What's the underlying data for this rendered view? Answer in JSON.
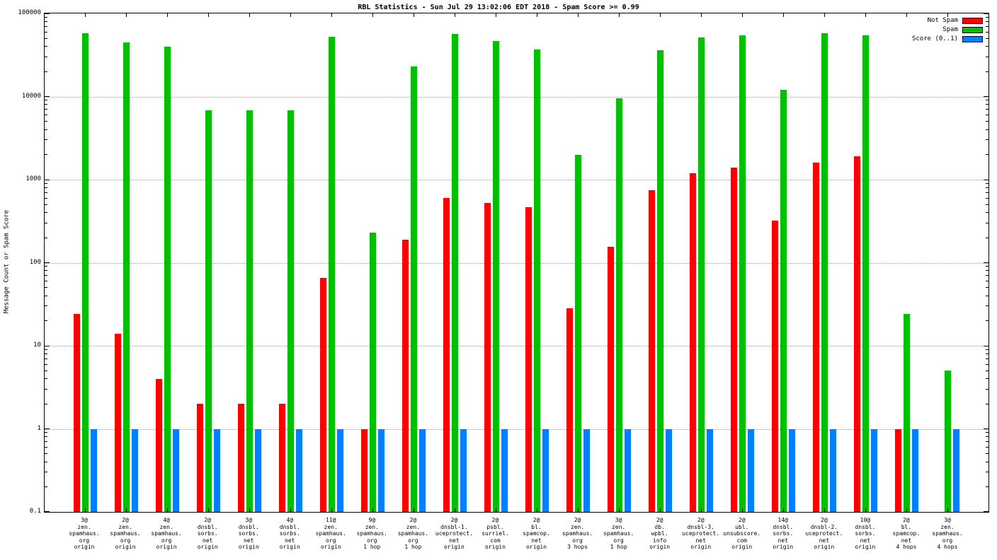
{
  "chart_data": {
    "type": "bar",
    "title": "RBL Statistics - Sun Jul 29 13:02:06 EDT 2018 - Spam Score >= 0.99",
    "ylabel": "Message Count or Spam Score",
    "xlabel": "",
    "scale": "log",
    "ylim": [
      0.1,
      100000
    ],
    "yticks": [
      "100000",
      "10000",
      "1000",
      "100",
      "10",
      "1",
      "0.1"
    ],
    "grid": true,
    "legend_position": "top-right",
    "categories": [
      [
        "3@",
        "zen.",
        "spamhaus.",
        "org",
        "origin"
      ],
      [
        "2@",
        "zen.",
        "spamhaus.",
        "org",
        "origin"
      ],
      [
        "4@",
        "zen.",
        "spamhaus.",
        "org",
        "origin"
      ],
      [
        "2@",
        "dnsbl.",
        "sorbs.",
        "net",
        "origin"
      ],
      [
        "3@",
        "dnsbl.",
        "sorbs.",
        "net",
        "origin"
      ],
      [
        "4@",
        "dnsbl.",
        "sorbs.",
        "net",
        "origin"
      ],
      [
        "11@",
        "zen.",
        "spamhaus.",
        "org",
        "origin"
      ],
      [
        "9@",
        "zen.",
        "spamhaus.",
        "org",
        "1 hop"
      ],
      [
        "2@",
        "zen.",
        "spamhaus.",
        "org",
        "1 hop"
      ],
      [
        "2@",
        "dnsbl-1.",
        "uceprotect.",
        "net",
        "origin"
      ],
      [
        "2@",
        "psbl.",
        "surriel.",
        "com",
        "origin"
      ],
      [
        "2@",
        "bl.",
        "spamcop.",
        "net",
        "origin"
      ],
      [
        "2@",
        "zen.",
        "spamhaus.",
        "org",
        "3 hops"
      ],
      [
        "3@",
        "zen.",
        "spamhaus.",
        "org",
        "1 hop"
      ],
      [
        "2@",
        "db.",
        "wpbl.",
        "info",
        "origin"
      ],
      [
        "2@",
        "dnsbl-3.",
        "uceprotect.",
        "net",
        "origin"
      ],
      [
        "2@",
        "ubl.",
        "unsubscore.",
        "com",
        "origin"
      ],
      [
        "14@",
        "dnsbl.",
        "sorbs.",
        "net",
        "origin"
      ],
      [
        "2@",
        "dnsbl-2.",
        "uceprotect.",
        "net",
        "origin"
      ],
      [
        "10@",
        "dnsbl.",
        "sorbs.",
        "net",
        "origin"
      ],
      [
        "2@",
        "bl.",
        "spamcop.",
        "net",
        "4 hops"
      ],
      [
        "3@",
        "zen.",
        "spamhaus.",
        "org",
        "4 hops"
      ]
    ],
    "series": [
      {
        "name": "Not Spam",
        "color": "#ff0000",
        "values": [
          24,
          14,
          4,
          2,
          2,
          2,
          65,
          1,
          190,
          600,
          520,
          470,
          28,
          155,
          750,
          1200,
          1400,
          320,
          1600,
          1900,
          1,
          null
        ]
      },
      {
        "name": "Spam",
        "color": "#00c000",
        "values": [
          58000,
          45000,
          40000,
          6800,
          6800,
          6800,
          52000,
          230,
          23000,
          57000,
          47000,
          37000,
          2000,
          9500,
          36000,
          51000,
          55000,
          12000,
          58000,
          54000,
          24,
          5
        ]
      },
      {
        "name": "Score (0..1)",
        "color": "#0080ff",
        "values": [
          1,
          1,
          1,
          1,
          1,
          1,
          1,
          1,
          1,
          1,
          1,
          1,
          1,
          1,
          1,
          1,
          1,
          1,
          1,
          1,
          1,
          1
        ]
      }
    ]
  }
}
